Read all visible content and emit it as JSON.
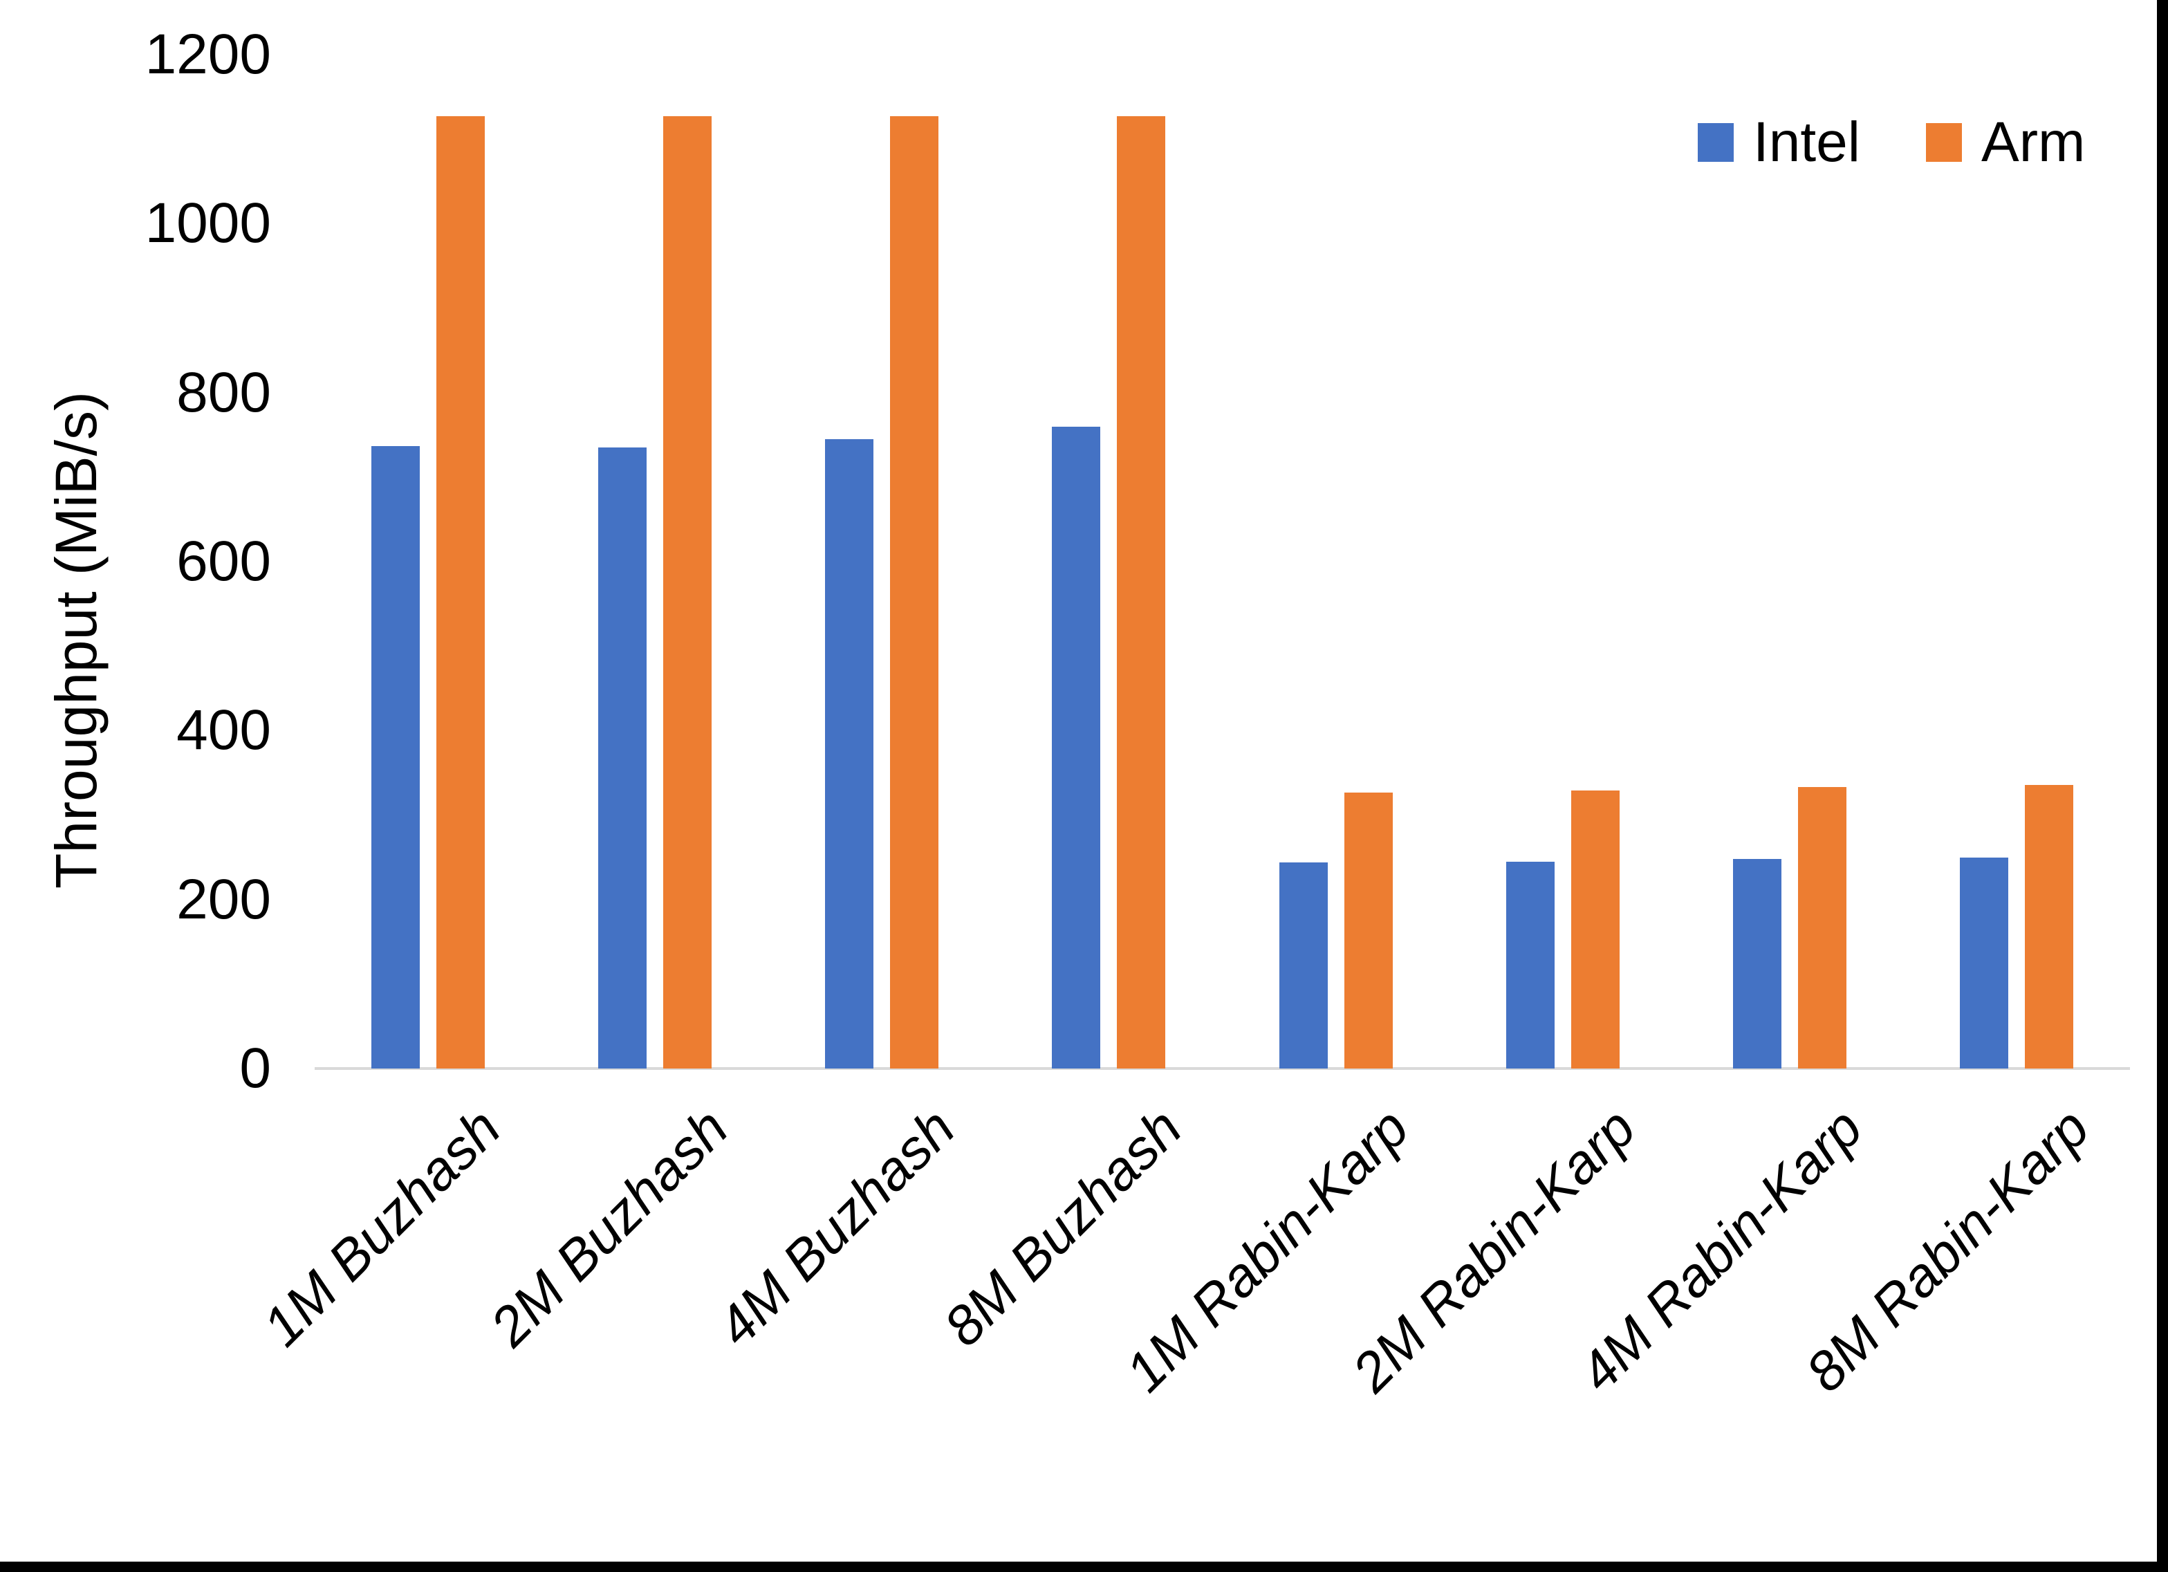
{
  "chart_data": {
    "type": "bar",
    "title": "",
    "xlabel": "",
    "ylabel": "Throughput (MiB/s)",
    "ylim": [
      0,
      1200
    ],
    "y_ticks": [
      0,
      200,
      400,
      600,
      800,
      1000,
      1200
    ],
    "grid": false,
    "legend_position": "top-right",
    "categories": [
      "1M Buzhash",
      "2M Buzhash",
      "4M Buzhash",
      "8M Buzhash",
      "1M Rabin-Karp",
      "2M Rabin-Karp",
      "4M Rabin-Karp",
      "8M Rabin-Karp"
    ],
    "series": [
      {
        "name": "Intel",
        "color": "#4472C4",
        "values": [
          737,
          735,
          745,
          760,
          244,
          245,
          248,
          250
        ]
      },
      {
        "name": "Arm",
        "color": "#ED7D31",
        "values": [
          1127,
          1127,
          1127,
          1127,
          327,
          329,
          333,
          336
        ]
      }
    ],
    "axis_line_color": "#d9d9d9"
  }
}
